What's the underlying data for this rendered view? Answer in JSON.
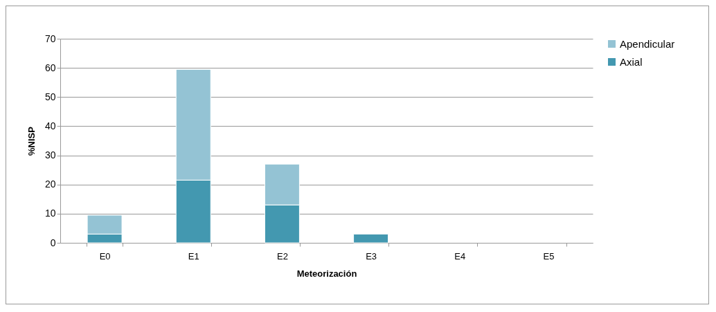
{
  "chart_data": {
    "type": "bar",
    "stacked": true,
    "xlabel": "Meteorización",
    "ylabel": "%NISP",
    "categories": [
      "E0",
      "E1",
      "E2",
      "E3",
      "E4",
      "E5"
    ],
    "series": [
      {
        "name": "Axial",
        "color": "#4398b0",
        "values": [
          3,
          21.5,
          13,
          3,
          0,
          0
        ]
      },
      {
        "name": "Apendicular",
        "color": "#94c3d4",
        "values": [
          6.5,
          38,
          14,
          0,
          0,
          0
        ]
      }
    ],
    "ylim": [
      0,
      70
    ],
    "yticks": [
      0,
      10,
      20,
      30,
      40,
      50,
      60,
      70
    ],
    "grid": "y",
    "legend": "right"
  }
}
